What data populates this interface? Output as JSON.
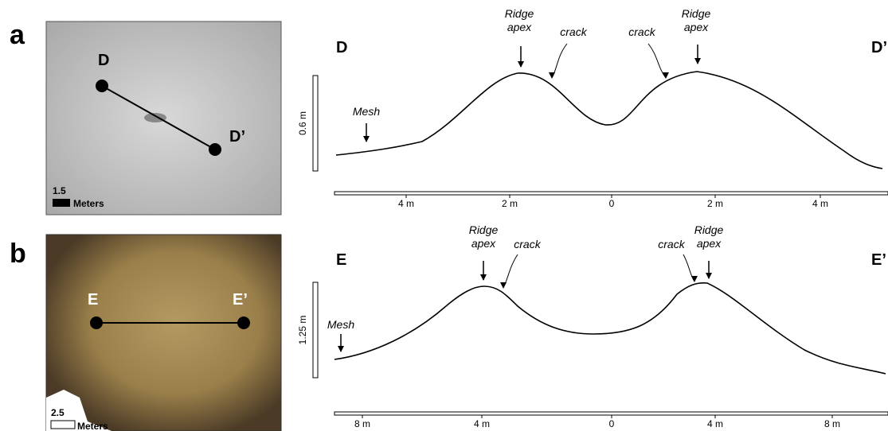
{
  "panels": [
    {
      "label": "a",
      "map": {
        "start": "D",
        "end": "D’",
        "scale_value": "1.5",
        "scale_unit": "Meters"
      },
      "profile": {
        "start": "D",
        "end": "D’",
        "vertical_scale": "0.6 m",
        "annotations": [
          [
            "Ridge",
            "apex"
          ],
          [
            "crack"
          ],
          [
            "crack"
          ],
          [
            "Ridge",
            "apex"
          ],
          [
            "Mesh"
          ]
        ],
        "axis_labels": [
          "4 m",
          "2 m",
          "0",
          "2 m",
          "4 m"
        ]
      }
    },
    {
      "label": "b",
      "map": {
        "start": "E",
        "end": "E’",
        "scale_value": "2.5",
        "scale_unit": "Meters"
      },
      "profile": {
        "start": "E",
        "end": "E’",
        "vertical_scale": "1.25 m",
        "annotations": [
          [
            "Ridge",
            "apex"
          ],
          [
            "crack"
          ],
          [
            "crack"
          ],
          [
            "Ridge",
            "apex"
          ],
          [
            "Mesh"
          ]
        ],
        "axis_labels": [
          "8 m",
          "4 m",
          "0",
          "4 m",
          "8 m"
        ]
      }
    }
  ]
}
